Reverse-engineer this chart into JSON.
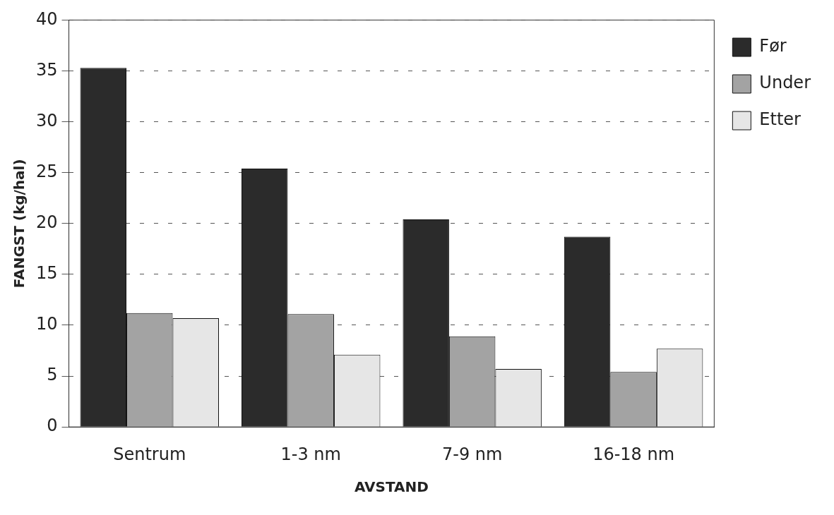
{
  "chart_data": {
    "type": "bar",
    "xlabel": "AVSTAND",
    "ylabel": "FANGST (kg/hal)",
    "categories": [
      "Sentrum",
      "1-3 nm",
      "7-9 nm",
      "16-18 nm"
    ],
    "series": [
      {
        "name": "Før",
        "color": "#2b2b2b",
        "values": [
          35.3,
          25.4,
          20.4,
          18.7
        ]
      },
      {
        "name": "Under",
        "color": "#a3a3a3",
        "values": [
          11.2,
          11.1,
          8.9,
          5.4
        ]
      },
      {
        "name": "Etter",
        "color": "#e6e6e6",
        "values": [
          10.7,
          7.1,
          5.7,
          7.7
        ]
      }
    ],
    "ylim": [
      0,
      40
    ],
    "yticks": [
      0,
      5,
      10,
      15,
      20,
      25,
      30,
      35,
      40
    ],
    "grid": "y",
    "legend": "right"
  }
}
